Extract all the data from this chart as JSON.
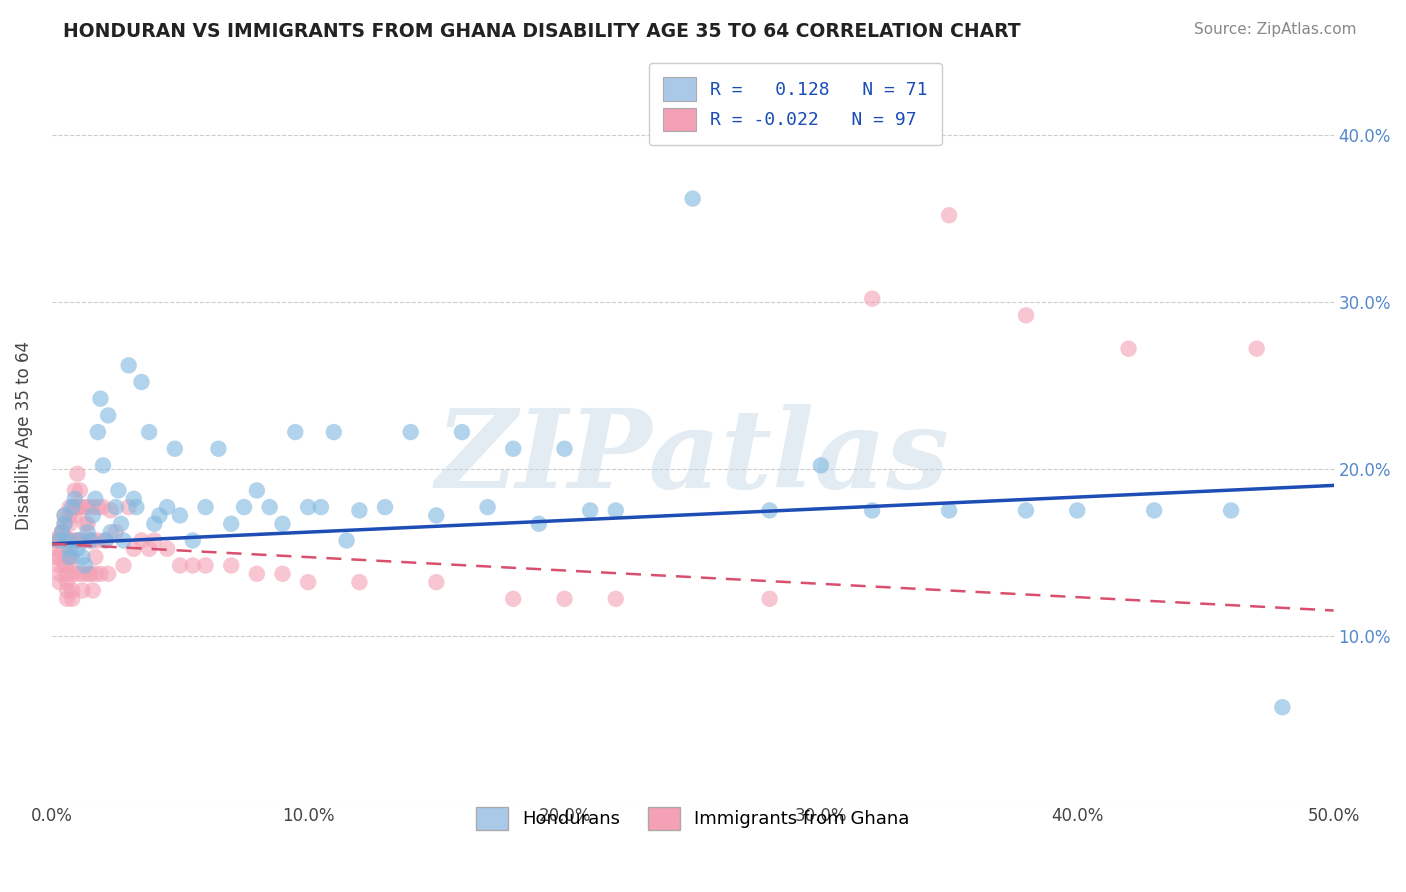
{
  "title": "HONDURAN VS IMMIGRANTS FROM GHANA DISABILITY AGE 35 TO 64 CORRELATION CHART",
  "source_text": "Source: ZipAtlas.com",
  "ylabel": "Disability Age 35 to 64",
  "xlim": [
    0.0,
    0.5
  ],
  "ylim": [
    0.0,
    0.44
  ],
  "xticks": [
    0.0,
    0.1,
    0.2,
    0.3,
    0.4,
    0.5
  ],
  "xticklabels": [
    "0.0%",
    "10.0%",
    "20.0%",
    "30.0%",
    "40.0%",
    "50.0%"
  ],
  "yticks": [
    0.0,
    0.1,
    0.2,
    0.3,
    0.4
  ],
  "yticklabels": [
    "",
    "10.0%",
    "20.0%",
    "30.0%",
    "40.0%"
  ],
  "blue_color": "#7eb8e0",
  "pink_color": "#f4a0b5",
  "blue_line_color": "#1e4db5",
  "pink_line_color": "#d94f6e",
  "watermark": "ZIPatlas",
  "legend_label_blue": "R =   0.128   N = 71",
  "legend_label_pink": "R = -0.022   N = 97",
  "blue_trend_x0": 0.0,
  "blue_trend_y0": 0.155,
  "blue_trend_x1": 0.5,
  "blue_trend_y1": 0.19,
  "pink_trend_x0": 0.0,
  "pink_trend_y0": 0.155,
  "pink_trend_x1": 0.5,
  "pink_trend_y1": 0.115,
  "hondurans_x": [
    0.003,
    0.004,
    0.005,
    0.005,
    0.006,
    0.007,
    0.007,
    0.008,
    0.009,
    0.01,
    0.01,
    0.012,
    0.013,
    0.014,
    0.015,
    0.016,
    0.017,
    0.018,
    0.019,
    0.02,
    0.021,
    0.022,
    0.023,
    0.025,
    0.026,
    0.027,
    0.028,
    0.03,
    0.032,
    0.033,
    0.035,
    0.038,
    0.04,
    0.042,
    0.045,
    0.048,
    0.05,
    0.055,
    0.06,
    0.065,
    0.07,
    0.075,
    0.08,
    0.085,
    0.09,
    0.095,
    0.1,
    0.105,
    0.11,
    0.115,
    0.12,
    0.13,
    0.14,
    0.15,
    0.16,
    0.17,
    0.18,
    0.19,
    0.2,
    0.21,
    0.22,
    0.25,
    0.28,
    0.3,
    0.32,
    0.35,
    0.38,
    0.4,
    0.43,
    0.46,
    0.48
  ],
  "hondurans_y": [
    0.157,
    0.162,
    0.167,
    0.172,
    0.157,
    0.147,
    0.152,
    0.177,
    0.182,
    0.152,
    0.157,
    0.147,
    0.142,
    0.162,
    0.157,
    0.172,
    0.182,
    0.222,
    0.242,
    0.202,
    0.157,
    0.232,
    0.162,
    0.177,
    0.187,
    0.167,
    0.157,
    0.262,
    0.182,
    0.177,
    0.252,
    0.222,
    0.167,
    0.172,
    0.177,
    0.212,
    0.172,
    0.157,
    0.177,
    0.212,
    0.167,
    0.177,
    0.187,
    0.177,
    0.167,
    0.222,
    0.177,
    0.177,
    0.222,
    0.157,
    0.175,
    0.177,
    0.222,
    0.172,
    0.222,
    0.177,
    0.212,
    0.167,
    0.212,
    0.175,
    0.175,
    0.362,
    0.175,
    0.202,
    0.175,
    0.175,
    0.175,
    0.175,
    0.175,
    0.175,
    0.057
  ],
  "ghana_x": [
    0.001,
    0.002,
    0.002,
    0.002,
    0.003,
    0.003,
    0.003,
    0.003,
    0.003,
    0.004,
    0.004,
    0.004,
    0.005,
    0.005,
    0.005,
    0.005,
    0.006,
    0.006,
    0.006,
    0.006,
    0.006,
    0.006,
    0.007,
    0.007,
    0.007,
    0.007,
    0.007,
    0.007,
    0.007,
    0.007,
    0.008,
    0.008,
    0.008,
    0.008,
    0.008,
    0.009,
    0.009,
    0.009,
    0.009,
    0.01,
    0.01,
    0.01,
    0.01,
    0.01,
    0.01,
    0.011,
    0.011,
    0.011,
    0.012,
    0.012,
    0.012,
    0.013,
    0.013,
    0.013,
    0.014,
    0.014,
    0.014,
    0.015,
    0.015,
    0.016,
    0.016,
    0.016,
    0.017,
    0.017,
    0.018,
    0.018,
    0.019,
    0.02,
    0.021,
    0.022,
    0.023,
    0.025,
    0.028,
    0.03,
    0.032,
    0.035,
    0.038,
    0.04,
    0.045,
    0.05,
    0.055,
    0.06,
    0.07,
    0.08,
    0.09,
    0.1,
    0.12,
    0.15,
    0.18,
    0.2,
    0.22,
    0.28,
    0.32,
    0.35,
    0.38,
    0.42,
    0.47
  ],
  "ghana_y": [
    0.157,
    0.157,
    0.152,
    0.147,
    0.157,
    0.147,
    0.142,
    0.137,
    0.132,
    0.162,
    0.162,
    0.157,
    0.167,
    0.172,
    0.157,
    0.142,
    0.147,
    0.137,
    0.127,
    0.132,
    0.122,
    0.147,
    0.157,
    0.172,
    0.177,
    0.167,
    0.157,
    0.157,
    0.157,
    0.142,
    0.137,
    0.127,
    0.122,
    0.147,
    0.157,
    0.172,
    0.177,
    0.177,
    0.187,
    0.197,
    0.177,
    0.177,
    0.157,
    0.137,
    0.177,
    0.187,
    0.177,
    0.157,
    0.137,
    0.127,
    0.157,
    0.167,
    0.177,
    0.157,
    0.137,
    0.167,
    0.177,
    0.157,
    0.137,
    0.127,
    0.177,
    0.157,
    0.137,
    0.147,
    0.177,
    0.157,
    0.137,
    0.177,
    0.157,
    0.137,
    0.175,
    0.162,
    0.142,
    0.177,
    0.152,
    0.157,
    0.152,
    0.157,
    0.152,
    0.142,
    0.142,
    0.142,
    0.142,
    0.137,
    0.137,
    0.132,
    0.132,
    0.132,
    0.122,
    0.122,
    0.122,
    0.122,
    0.302,
    0.352,
    0.292,
    0.272,
    0.272
  ]
}
